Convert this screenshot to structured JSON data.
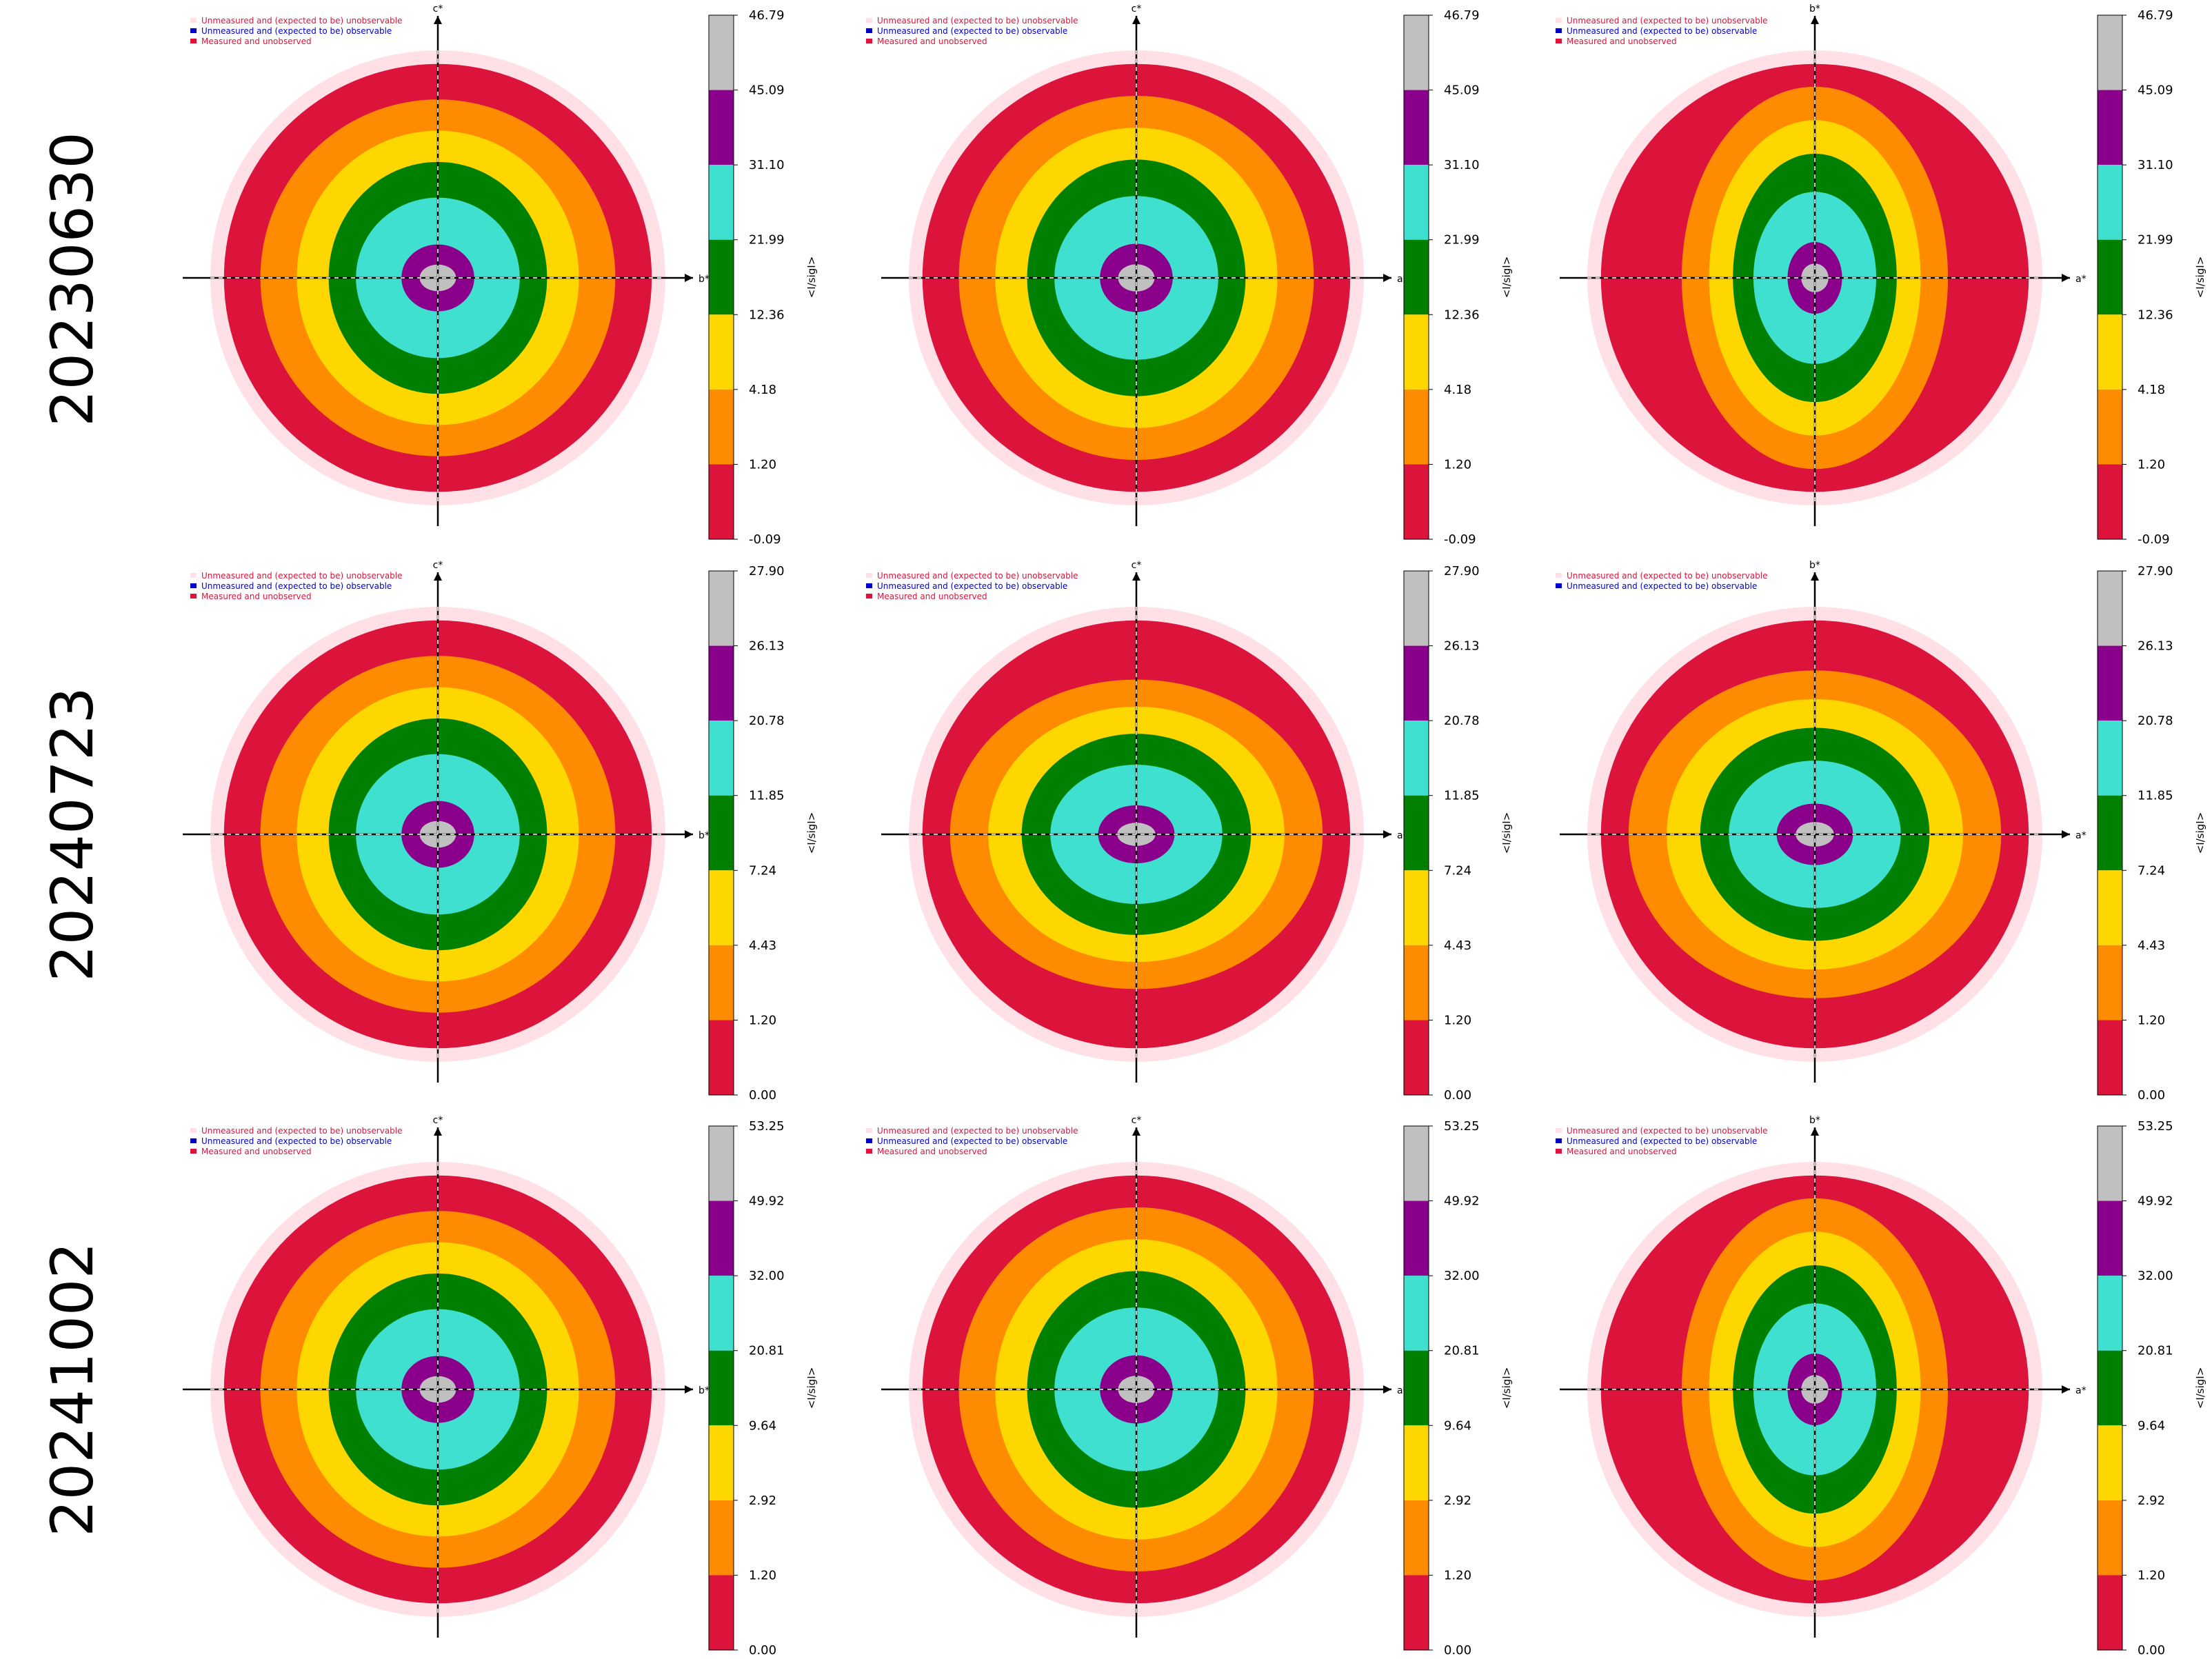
{
  "row_labels": [
    "20230630",
    "20240723",
    "20241002"
  ],
  "legend": {
    "unmeasured_unobservable": "Unmeasured and (expected to be) unobservable",
    "unmeasured_observable": "Unmeasured and (expected to be) observable",
    "measured_unobserved": "Measured and unobserved"
  },
  "colorbar_title": "<I/sigI>",
  "colors": {
    "bins": [
      "#dc143c",
      "#ff8c00",
      "#ffd700",
      "#008000",
      "#40e0d0",
      "#8b008b",
      "#c0c0c0"
    ],
    "unobservable": "#ffe0e6",
    "observable": "#0000cd",
    "unobserved": "#dc143c"
  },
  "chart_data": [
    {
      "type": "heatmap",
      "row": 0,
      "col": 0,
      "x_axis": "b*",
      "y_axis": "c*",
      "legend_entries": 3,
      "colorbar_ticks": [
        "46.79",
        "45.09",
        "31.10",
        "21.99",
        "12.36",
        "4.18",
        "1.20",
        "-0.09"
      ],
      "colorbar_label": "<I/sigI>"
    },
    {
      "type": "heatmap",
      "row": 0,
      "col": 1,
      "x_axis": "a*",
      "y_axis": "c*",
      "legend_entries": 3,
      "colorbar_ticks": [
        "46.79",
        "45.09",
        "31.10",
        "21.99",
        "12.36",
        "4.18",
        "1.20",
        "-0.09"
      ],
      "colorbar_label": "<I/sigI>"
    },
    {
      "type": "heatmap",
      "row": 0,
      "col": 2,
      "x_axis": "a*",
      "y_axis": "b*",
      "legend_entries": 3,
      "colorbar_ticks": [
        "46.79",
        "45.09",
        "31.10",
        "21.99",
        "12.36",
        "4.18",
        "1.20",
        "-0.09"
      ],
      "colorbar_label": "<I/sigI>"
    },
    {
      "type": "heatmap",
      "row": 1,
      "col": 0,
      "x_axis": "b*",
      "y_axis": "c*",
      "legend_entries": 3,
      "colorbar_ticks": [
        "27.90",
        "26.13",
        "20.78",
        "11.85",
        "7.24",
        "4.43",
        "1.20",
        "0.00"
      ],
      "colorbar_label": "<I/sigI>"
    },
    {
      "type": "heatmap",
      "row": 1,
      "col": 1,
      "x_axis": "a*",
      "y_axis": "c*",
      "legend_entries": 3,
      "colorbar_ticks": [
        "27.90",
        "26.13",
        "20.78",
        "11.85",
        "7.24",
        "4.43",
        "1.20",
        "0.00"
      ],
      "colorbar_label": "<I/sigI>"
    },
    {
      "type": "heatmap",
      "row": 1,
      "col": 2,
      "x_axis": "a*",
      "y_axis": "b*",
      "legend_entries": 2,
      "colorbar_ticks": [
        "27.90",
        "26.13",
        "20.78",
        "11.85",
        "7.24",
        "4.43",
        "1.20",
        "0.00"
      ],
      "colorbar_label": "<I/sigI>"
    },
    {
      "type": "heatmap",
      "row": 2,
      "col": 0,
      "x_axis": "b*",
      "y_axis": "c*",
      "legend_entries": 3,
      "colorbar_ticks": [
        "53.25",
        "49.92",
        "32.00",
        "20.81",
        "9.64",
        "2.92",
        "1.20",
        "0.00"
      ],
      "colorbar_label": "<I/sigI>"
    },
    {
      "type": "heatmap",
      "row": 2,
      "col": 1,
      "x_axis": "a*",
      "y_axis": "c*",
      "legend_entries": 3,
      "colorbar_ticks": [
        "53.25",
        "49.92",
        "32.00",
        "20.81",
        "9.64",
        "2.92",
        "1.20",
        "0.00"
      ],
      "colorbar_label": "<I/sigI>"
    },
    {
      "type": "heatmap",
      "row": 2,
      "col": 2,
      "x_axis": "a*",
      "y_axis": "b*",
      "legend_entries": 3,
      "colorbar_ticks": [
        "53.25",
        "49.92",
        "32.00",
        "20.81",
        "9.64",
        "2.92",
        "1.20",
        "0.00"
      ],
      "colorbar_label": "<I/sigI>"
    }
  ]
}
